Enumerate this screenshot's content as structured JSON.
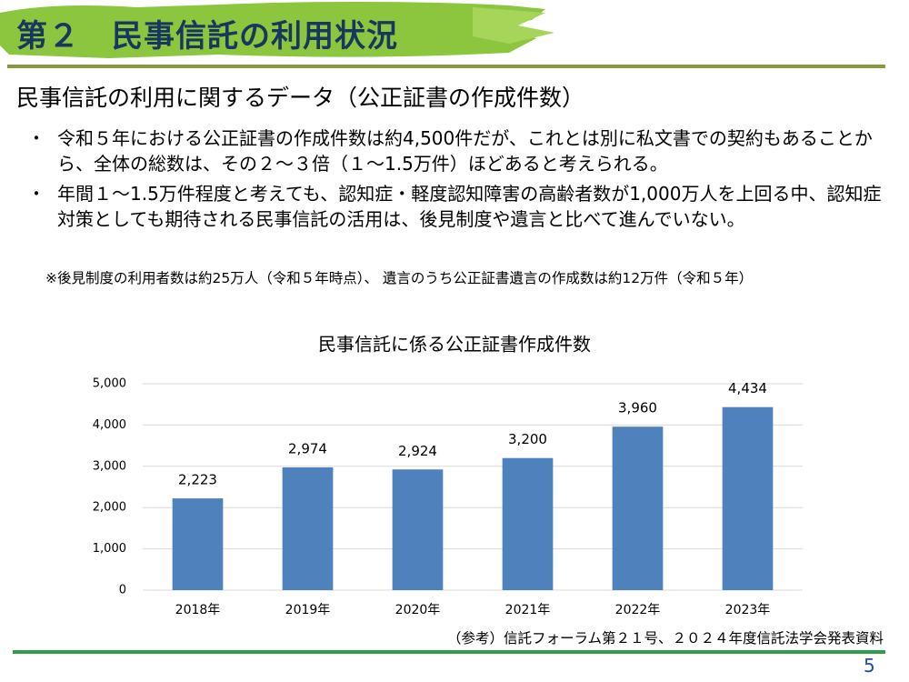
{
  "header": {
    "title": "第２　民事信託の利用状況"
  },
  "subtitle": "民事信託の利用に関するデータ（公正証書の作成件数）",
  "bullets": [
    "令和５年における公正証書の作成件数は約4,500件だが、これとは別に私文書での契約もあることから、全体の総数は、その２～３倍（１～1.5万件）ほどあると考えられる。",
    "年間１～1.5万件程度と考えても、認知症・軽度認知障害の高齢者数が1,000万人を上回る中、認知症対策としても期待される民事信託の活用は、後見制度や遺言と比べて進んでいない。"
  ],
  "bullet_marker": "・",
  "note": "※後見制度の利用者数は約25万人（令和５年時点）、 遺言のうち公正証書遺言の作成数は約12万件（令和５年）",
  "chart_data": {
    "type": "bar",
    "title": "民事信託に係る公正証書作成件数",
    "categories": [
      "2018年",
      "2019年",
      "2020年",
      "2021年",
      "2022年",
      "2023年"
    ],
    "values": [
      2223,
      2974,
      2924,
      3200,
      3960,
      4434
    ],
    "value_labels": [
      "2,223",
      "2,974",
      "2,924",
      "3,200",
      "3,960",
      "4,434"
    ],
    "color": "#4f81bd",
    "ylim": [
      0,
      5000
    ],
    "yticks": [
      0,
      {
        "value": 1000,
        "label": "1,000"
      },
      {
        "value": 2000,
        "label": "2,000"
      },
      {
        "value": 3000,
        "label": "3,000"
      },
      {
        "value": 4000,
        "label": "4,000"
      },
      {
        "value": 5000,
        "label": "5,000"
      }
    ],
    "grid": true
  },
  "source": "（参考）信託フォーラム第２１号、２０２４年度信託法学会発表資料",
  "page_number": "5"
}
